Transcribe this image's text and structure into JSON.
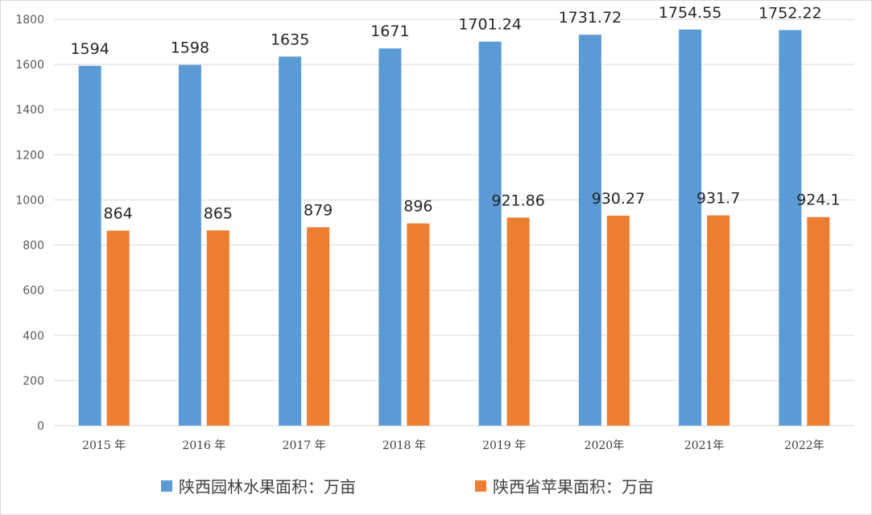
{
  "chart_data": {
    "type": "bar",
    "title": "",
    "categories": [
      "2015 年",
      "2016 年",
      "2017 年",
      "2018 年",
      "2019 年",
      "2020年",
      "2021年",
      "2022年"
    ],
    "series": [
      {
        "name": "陕西园林水果面积：万亩",
        "color": "#5b9bd5",
        "values": [
          1594,
          1598,
          1635,
          1671,
          1701.24,
          1731.72,
          1754.55,
          1752.22
        ],
        "labels": [
          "1594",
          "1598",
          "1635",
          "1671",
          "1701.24",
          "1731.72",
          "1754.55",
          "1752.22"
        ]
      },
      {
        "name": "陕西省苹果面积：万亩",
        "color": "#ed7d31",
        "values": [
          864,
          865,
          879,
          896,
          921.86,
          930.27,
          931.7,
          924.1
        ],
        "labels": [
          "864",
          "865",
          "879",
          "896",
          "921.86",
          "930.27",
          "931.7",
          "924.1"
        ]
      }
    ],
    "ylim": [
      0,
      1800
    ],
    "yticks": [
      0,
      200,
      400,
      600,
      800,
      1000,
      1200,
      1400,
      1600,
      1800
    ],
    "grid": true,
    "legend_position": "bottom"
  }
}
